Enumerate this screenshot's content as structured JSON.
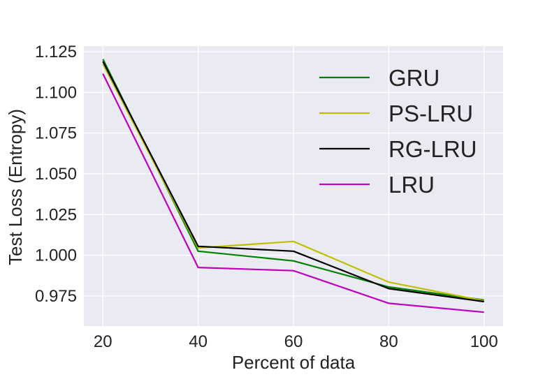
{
  "chart_data": {
    "type": "line",
    "xlabel": "Percent of data",
    "ylabel": "Test Loss (Entropy)",
    "x": [
      20,
      40,
      60,
      80,
      100
    ],
    "xlim": [
      16,
      104
    ],
    "ylim": [
      0.9565,
      1.1285
    ],
    "xticks": [
      20,
      40,
      60,
      80,
      100
    ],
    "xtick_labels": [
      "20",
      "40",
      "60",
      "80",
      "100"
    ],
    "yticks": [
      0.975,
      1.0,
      1.025,
      1.05,
      1.075,
      1.1,
      1.125
    ],
    "ytick_labels": [
      "0.975",
      "1.000",
      "1.025",
      "1.050",
      "1.075",
      "1.100",
      "1.125"
    ],
    "grid": true,
    "legend_position": "top-right",
    "series": [
      {
        "name": "GRU",
        "color": "#008000",
        "values": [
          1.1205,
          1.0025,
          0.9965,
          0.9805,
          0.9725
        ]
      },
      {
        "name": "PS-LRU",
        "color": "#bfbf00",
        "values": [
          1.1175,
          1.0045,
          1.0085,
          0.9835,
          0.972
        ]
      },
      {
        "name": "RG-LRU",
        "color": "#000000",
        "values": [
          1.119,
          1.0055,
          1.0025,
          0.9795,
          0.9715
        ]
      },
      {
        "name": "LRU",
        "color": "#bf00bf",
        "values": [
          1.1115,
          0.9925,
          0.9905,
          0.9705,
          0.965
        ]
      }
    ]
  }
}
